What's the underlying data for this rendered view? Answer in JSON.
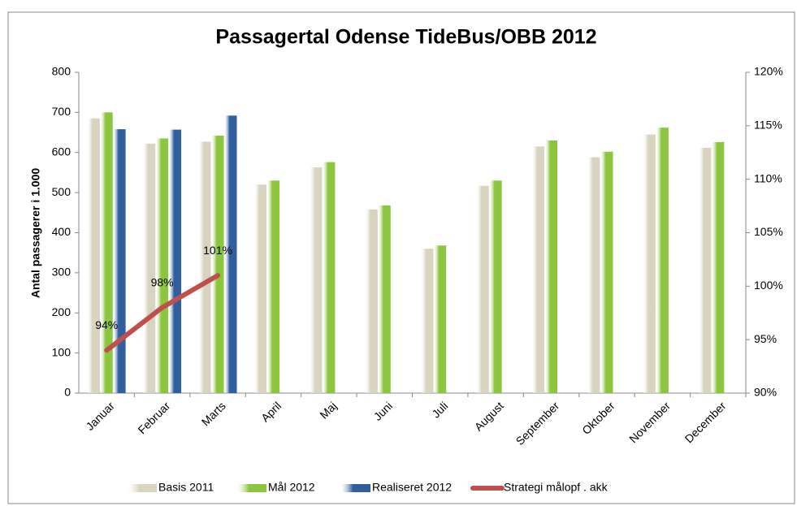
{
  "chart_data": {
    "type": "bar",
    "title": "Passagertal Odense TideBus/OBB 2012",
    "y_label": "Antal passagerer i 1.000",
    "categories": [
      "Januar",
      "Februar",
      "Marts",
      "April",
      "Maj",
      "Juni",
      "Juli",
      "August",
      "September",
      "Oktober",
      "November",
      "December"
    ],
    "series": [
      {
        "name": "Basis 2011",
        "color": "#d9d4bf",
        "values": [
          685,
          622,
          627,
          520,
          563,
          458,
          360,
          517,
          615,
          588,
          645,
          612
        ]
      },
      {
        "name": "Mål 2012",
        "color": "#8cc63f",
        "values": [
          700,
          635,
          642,
          530,
          576,
          468,
          368,
          530,
          630,
          602,
          662,
          626
        ]
      },
      {
        "name": "Realiseret 2012",
        "color": "#2f5f9e",
        "values": [
          658,
          657,
          692,
          null,
          null,
          null,
          null,
          null,
          null,
          null,
          null,
          null
        ]
      },
      {
        "name": "Strategi målopf . akk",
        "color": "#c0504d",
        "type": "line",
        "axis": "y2",
        "values": [
          94,
          98,
          101,
          null,
          null,
          null,
          null,
          null,
          null,
          null,
          null,
          null
        ],
        "value_labels": [
          "94%",
          "98%",
          "101%",
          null,
          null,
          null,
          null,
          null,
          null,
          null,
          null,
          null
        ]
      }
    ],
    "ylim": [
      0,
      800
    ],
    "yticks": [
      0,
      100,
      200,
      300,
      400,
      500,
      600,
      700,
      800
    ],
    "y2lim": [
      90,
      120
    ],
    "y2ticks": [
      {
        "value": 90,
        "label": "90%"
      },
      {
        "value": 95,
        "label": "95%"
      },
      {
        "value": 100,
        "label": "100%"
      },
      {
        "value": 105,
        "label": "105%"
      },
      {
        "value": 110,
        "label": "110%"
      },
      {
        "value": 115,
        "label": "115%"
      },
      {
        "value": 120,
        "label": "120%"
      }
    ],
    "legend": "bottom"
  }
}
